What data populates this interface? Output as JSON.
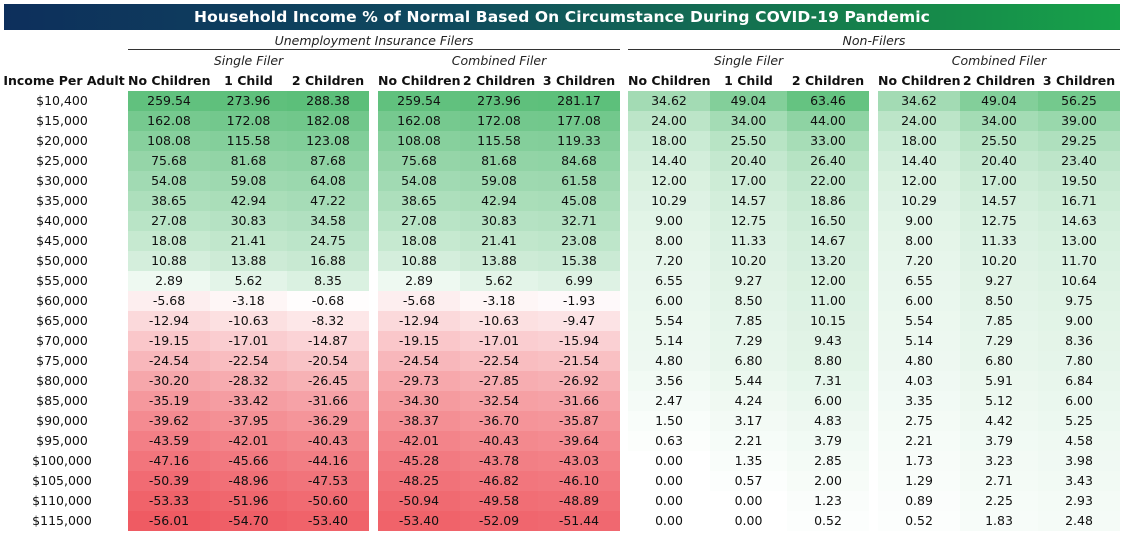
{
  "title": "Household Income % of Normal Based On  Circumstance During COVID-19 Pandemic",
  "groups": [
    {
      "label": "Unemployment Insurance Filers",
      "subgroups": [
        "Single Filer",
        "Combined Filer"
      ]
    },
    {
      "label": "Non-Filers",
      "subgroups": [
        "Single Filer",
        "Combined Filer"
      ]
    }
  ],
  "row_header": "Income Per Adult",
  "column_headers": [
    "No Children",
    "1 Child",
    "2 Children",
    "No Children",
    "2 Children",
    "3 Children",
    "No Children",
    "1 Child",
    "2 Children",
    "No Children",
    "2 Children",
    "3 Children"
  ],
  "colors": {
    "positive": "#5cbf7a",
    "negative": "#ef5b63",
    "light_green": "#a9dcb4",
    "title_start": "#0d2f5c",
    "title_end": "#17a24a"
  },
  "chart_data": {
    "type": "table",
    "title": "Household Income % of Normal Based On  Circumstance During COVID-19 Pandemic",
    "row_labels": [
      "$10,400",
      "$15,000",
      "$20,000",
      "$25,000",
      "$30,000",
      "$35,000",
      "$40,000",
      "$45,000",
      "$50,000",
      "$55,000",
      "$60,000",
      "$65,000",
      "$70,000",
      "$75,000",
      "$80,000",
      "$85,000",
      "$90,000",
      "$95,000",
      "$100,000",
      "$105,000",
      "$110,000",
      "$115,000"
    ],
    "rows": [
      [
        "259.54",
        "273.96",
        "288.38",
        "259.54",
        "273.96",
        "281.17",
        "34.62",
        "49.04",
        "63.46",
        "34.62",
        "49.04",
        "56.25"
      ],
      [
        "162.08",
        "172.08",
        "182.08",
        "162.08",
        "172.08",
        "177.08",
        "24.00",
        "34.00",
        "44.00",
        "24.00",
        "34.00",
        "39.00"
      ],
      [
        "108.08",
        "115.58",
        "123.08",
        "108.08",
        "115.58",
        "119.33",
        "18.00",
        "25.50",
        "33.00",
        "18.00",
        "25.50",
        "29.25"
      ],
      [
        "75.68",
        "81.68",
        "87.68",
        "75.68",
        "81.68",
        "84.68",
        "14.40",
        "20.40",
        "26.40",
        "14.40",
        "20.40",
        "23.40"
      ],
      [
        "54.08",
        "59.08",
        "64.08",
        "54.08",
        "59.08",
        "61.58",
        "12.00",
        "17.00",
        "22.00",
        "12.00",
        "17.00",
        "19.50"
      ],
      [
        "38.65",
        "42.94",
        "47.22",
        "38.65",
        "42.94",
        "45.08",
        "10.29",
        "14.57",
        "18.86",
        "10.29",
        "14.57",
        "16.71"
      ],
      [
        "27.08",
        "30.83",
        "34.58",
        "27.08",
        "30.83",
        "32.71",
        "9.00",
        "12.75",
        "16.50",
        "9.00",
        "12.75",
        "14.63"
      ],
      [
        "18.08",
        "21.41",
        "24.75",
        "18.08",
        "21.41",
        "23.08",
        "8.00",
        "11.33",
        "14.67",
        "8.00",
        "11.33",
        "13.00"
      ],
      [
        "10.88",
        "13.88",
        "16.88",
        "10.88",
        "13.88",
        "15.38",
        "7.20",
        "10.20",
        "13.20",
        "7.20",
        "10.20",
        "11.70"
      ],
      [
        "2.89",
        "5.62",
        "8.35",
        "2.89",
        "5.62",
        "6.99",
        "6.55",
        "9.27",
        "12.00",
        "6.55",
        "9.27",
        "10.64"
      ],
      [
        "-5.68",
        "-3.18",
        "-0.68",
        "-5.68",
        "-3.18",
        "-1.93",
        "6.00",
        "8.50",
        "11.00",
        "6.00",
        "8.50",
        "9.75"
      ],
      [
        "-12.94",
        "-10.63",
        "-8.32",
        "-12.94",
        "-10.63",
        "-9.47",
        "5.54",
        "7.85",
        "10.15",
        "5.54",
        "7.85",
        "9.00"
      ],
      [
        "-19.15",
        "-17.01",
        "-14.87",
        "-19.15",
        "-17.01",
        "-15.94",
        "5.14",
        "7.29",
        "9.43",
        "5.14",
        "7.29",
        "8.36"
      ],
      [
        "-24.54",
        "-22.54",
        "-20.54",
        "-24.54",
        "-22.54",
        "-21.54",
        "4.80",
        "6.80",
        "8.80",
        "4.80",
        "6.80",
        "7.80"
      ],
      [
        "-30.20",
        "-28.32",
        "-26.45",
        "-29.73",
        "-27.85",
        "-26.92",
        "3.56",
        "5.44",
        "7.31",
        "4.03",
        "5.91",
        "6.84"
      ],
      [
        "-35.19",
        "-33.42",
        "-31.66",
        "-34.30",
        "-32.54",
        "-31.66",
        "2.47",
        "4.24",
        "6.00",
        "3.35",
        "5.12",
        "6.00"
      ],
      [
        "-39.62",
        "-37.95",
        "-36.29",
        "-38.37",
        "-36.70",
        "-35.87",
        "1.50",
        "3.17",
        "4.83",
        "2.75",
        "4.42",
        "5.25"
      ],
      [
        "-43.59",
        "-42.01",
        "-40.43",
        "-42.01",
        "-40.43",
        "-39.64",
        "0.63",
        "2.21",
        "3.79",
        "2.21",
        "3.79",
        "4.58"
      ],
      [
        "-47.16",
        "-45.66",
        "-44.16",
        "-45.28",
        "-43.78",
        "-43.03",
        "0.00",
        "1.35",
        "2.85",
        "1.73",
        "3.23",
        "3.98"
      ],
      [
        "-50.39",
        "-48.96",
        "-47.53",
        "-48.25",
        "-46.82",
        "-46.10",
        "0.00",
        "0.57",
        "2.00",
        "1.29",
        "2.71",
        "3.43"
      ],
      [
        "-53.33",
        "-51.96",
        "-50.60",
        "-50.94",
        "-49.58",
        "-48.89",
        "0.00",
        "0.00",
        "1.23",
        "0.89",
        "2.25",
        "2.93"
      ],
      [
        "-56.01",
        "-54.70",
        "-53.40",
        "-53.40",
        "-52.09",
        "-51.44",
        "0.00",
        "0.00",
        "0.52",
        "0.52",
        "1.83",
        "2.48"
      ]
    ]
  }
}
